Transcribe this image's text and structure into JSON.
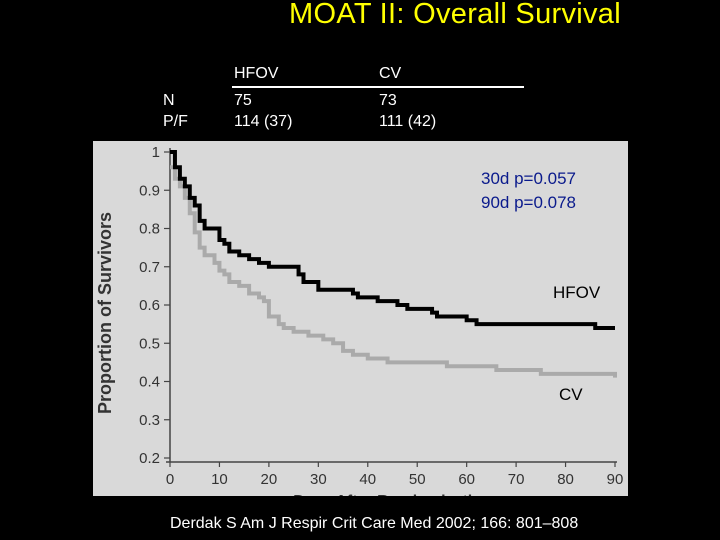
{
  "slide_title": "MOAT II: Overall Survival",
  "table": {
    "headers": [
      "HFOV",
      "CV"
    ],
    "rows": [
      {
        "label": "N",
        "hfov": "75",
        "cv": "73"
      },
      {
        "label": "P/F",
        "hfov": "114 (37)",
        "cv": "111 (42)"
      }
    ]
  },
  "stats": [
    "30d p=0.057",
    "90d p=0.078"
  ],
  "citation": "Derdak S   Am J Respir Crit Care Med 2002; 166: 801–808",
  "chart_data": {
    "type": "line",
    "step": true,
    "xlabel": "Days After Randomization",
    "ylabel": "Proportion of Survivors",
    "xlim": [
      0,
      90
    ],
    "ylim": [
      0.2,
      1.0
    ],
    "x_ticks": [
      "0",
      "10",
      "20",
      "30",
      "40",
      "50",
      "60",
      "70",
      "80",
      "90"
    ],
    "y_ticks": [
      "0.2",
      "0.3",
      "0.4",
      "0.5",
      "0.6",
      "0.7",
      "0.8",
      "0.9",
      "1"
    ],
    "grid": false,
    "series": [
      {
        "name": "HFOV",
        "color": "#000000",
        "x": [
          0,
          1,
          2,
          3,
          4,
          5,
          6,
          7,
          10,
          11,
          12,
          14,
          16,
          18,
          20,
          22,
          26,
          27,
          30,
          36,
          37,
          38,
          40,
          42,
          45,
          46,
          48,
          53,
          54,
          60,
          61,
          62,
          63,
          64,
          75,
          85,
          86,
          90
        ],
        "y": [
          1.0,
          0.96,
          0.93,
          0.91,
          0.88,
          0.86,
          0.82,
          0.8,
          0.77,
          0.76,
          0.74,
          0.73,
          0.72,
          0.71,
          0.7,
          0.7,
          0.68,
          0.66,
          0.64,
          0.64,
          0.63,
          0.62,
          0.62,
          0.61,
          0.61,
          0.6,
          0.59,
          0.58,
          0.57,
          0.56,
          0.56,
          0.55,
          0.55,
          0.55,
          0.55,
          0.55,
          0.54,
          0.54
        ]
      },
      {
        "name": "CV",
        "color": "#aaaaaa",
        "x": [
          0,
          1,
          2,
          3,
          4,
          5,
          6,
          7,
          9,
          10,
          11,
          12,
          14,
          16,
          18,
          19,
          20,
          22,
          23,
          25,
          28,
          30,
          31,
          33,
          35,
          37,
          39,
          40,
          42,
          44,
          50,
          56,
          61,
          65,
          66,
          68,
          70,
          72,
          75,
          80,
          82,
          90
        ],
        "y": [
          0.96,
          0.93,
          0.91,
          0.88,
          0.84,
          0.79,
          0.75,
          0.73,
          0.71,
          0.69,
          0.68,
          0.66,
          0.65,
          0.63,
          0.62,
          0.61,
          0.57,
          0.55,
          0.54,
          0.53,
          0.52,
          0.52,
          0.51,
          0.5,
          0.48,
          0.47,
          0.47,
          0.46,
          0.46,
          0.45,
          0.45,
          0.44,
          0.44,
          0.44,
          0.43,
          0.43,
          0.43,
          0.43,
          0.42,
          0.42,
          0.42,
          0.41
        ]
      }
    ]
  }
}
